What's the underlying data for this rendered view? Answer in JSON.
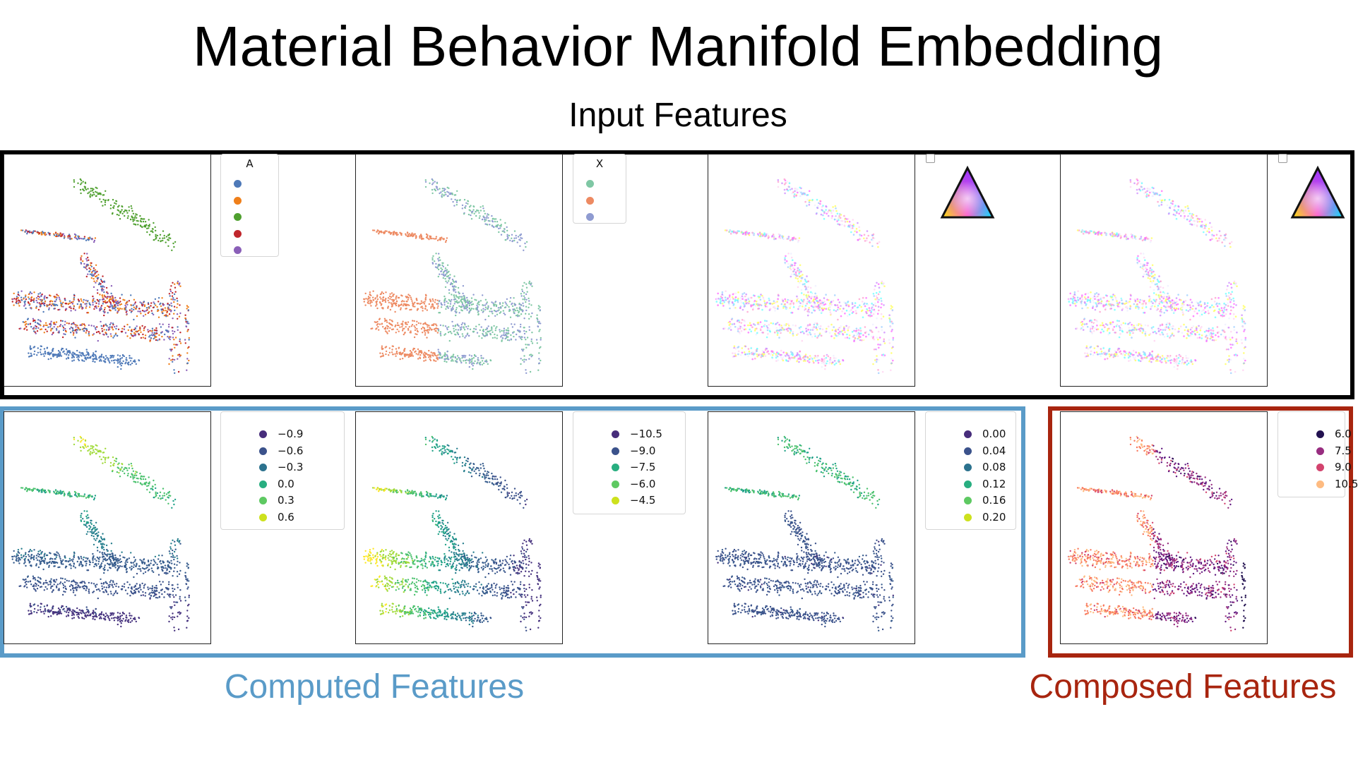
{
  "title": "Material Behavior Manifold Embedding",
  "colors": {
    "computed": "#5a9bc8",
    "composed": "#a8250f"
  },
  "groups": {
    "input": {
      "label": "Input Features"
    },
    "computed": {
      "label": "Computed Features"
    },
    "composed": {
      "label": "Composed Features"
    }
  },
  "panels": [
    {
      "type": "categorical",
      "legend_title": "A",
      "items": [
        {
          "color": "#4e79b8"
        },
        {
          "color": "#ef7f1a"
        },
        {
          "color": "#4fa02f"
        },
        {
          "color": "#c0262c"
        },
        {
          "color": "#8a5fb8"
        }
      ]
    },
    {
      "type": "categorical",
      "legend_title": "X",
      "items": [
        {
          "color": "#7fc7a4"
        },
        {
          "color": "#ed8a62"
        },
        {
          "color": "#8f9bd1"
        }
      ]
    },
    {
      "type": "ternary"
    },
    {
      "type": "ternary"
    },
    {
      "type": "continuous",
      "colormap": "viridis",
      "items": [
        {
          "label": "−0.9"
        },
        {
          "label": "−0.6"
        },
        {
          "label": "−0.3"
        },
        {
          "label": "0.0"
        },
        {
          "label": "0.3"
        },
        {
          "label": "0.6"
        }
      ]
    },
    {
      "type": "continuous",
      "colormap": "viridis",
      "items": [
        {
          "label": "−10.5"
        },
        {
          "label": "−9.0"
        },
        {
          "label": "−7.5"
        },
        {
          "label": "−6.0"
        },
        {
          "label": "−4.5"
        }
      ]
    },
    {
      "type": "continuous",
      "colormap": "viridis",
      "items": [
        {
          "label": "0.00"
        },
        {
          "label": "0.04"
        },
        {
          "label": "0.08"
        },
        {
          "label": "0.12"
        },
        {
          "label": "0.16"
        },
        {
          "label": "0.20"
        }
      ]
    },
    {
      "type": "continuous",
      "colormap": "magma",
      "items": [
        {
          "label": "6.0"
        },
        {
          "label": "7.5"
        },
        {
          "label": "9.0"
        },
        {
          "label": "10.5"
        }
      ]
    }
  ]
}
